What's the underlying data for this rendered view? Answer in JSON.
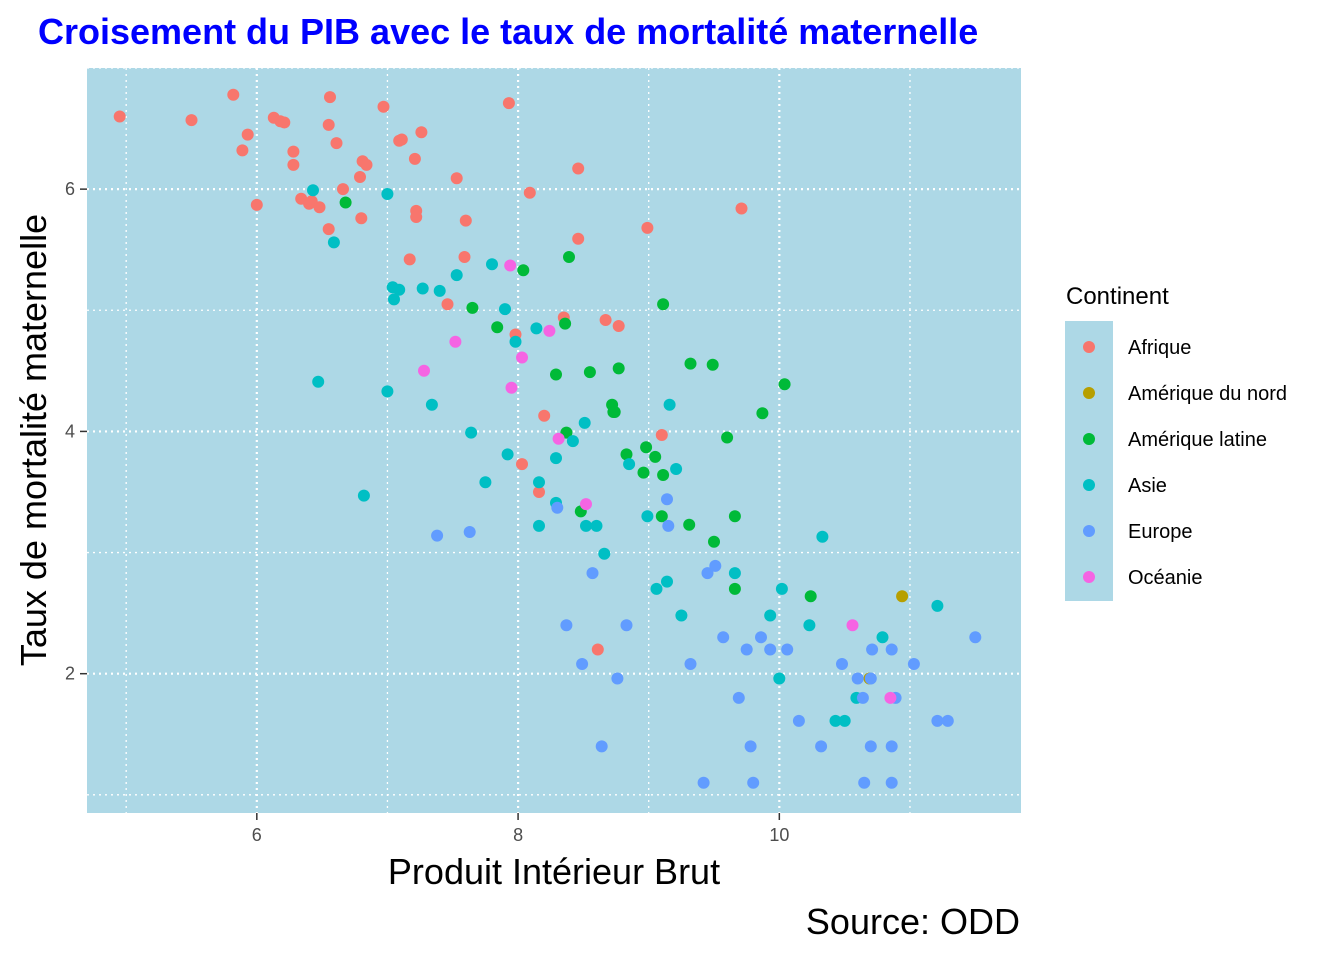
{
  "chart_data": {
    "type": "scatter",
    "title": "Croisement du PIB avec le taux de mortalité maternelle",
    "xlabel": "Produit Intérieur Brut",
    "ylabel": "Taux de mortalité maternelle",
    "caption": "Source: ODD",
    "xlim": [
      4.7,
      11.85
    ],
    "ylim": [
      0.85,
      7.0
    ],
    "x_ticks": [
      6,
      8,
      10
    ],
    "x_tick_labels": [
      "6",
      "8",
      "10"
    ],
    "y_ticks": [
      2,
      4,
      6
    ],
    "y_tick_labels": [
      "2",
      "4",
      "6"
    ],
    "grid": "on",
    "legend": {
      "title": "Continent",
      "position": "right"
    },
    "colors": {
      "panel_background": "#add8e6",
      "grid": "#ffffff",
      "title": "#0000ff"
    },
    "series": [
      {
        "name": "Afrique",
        "color": "#f8766d",
        "points": [
          [
            4.95,
            6.6
          ],
          [
            5.5,
            6.57
          ],
          [
            5.82,
            6.78
          ],
          [
            5.93,
            6.45
          ],
          [
            5.89,
            6.32
          ],
          [
            6.0,
            5.87
          ],
          [
            6.13,
            6.59
          ],
          [
            6.18,
            6.56
          ],
          [
            6.21,
            6.55
          ],
          [
            6.28,
            6.31
          ],
          [
            6.28,
            6.2
          ],
          [
            6.34,
            5.92
          ],
          [
            6.4,
            5.88
          ],
          [
            6.42,
            5.9
          ],
          [
            6.48,
            5.85
          ],
          [
            6.55,
            6.53
          ],
          [
            6.56,
            6.76
          ],
          [
            6.61,
            6.38
          ],
          [
            6.55,
            5.67
          ],
          [
            6.66,
            6.0
          ],
          [
            6.79,
            6.1
          ],
          [
            6.81,
            6.23
          ],
          [
            6.84,
            6.2
          ],
          [
            6.8,
            5.76
          ],
          [
            6.97,
            6.68
          ],
          [
            7.09,
            6.4
          ],
          [
            7.11,
            6.41
          ],
          [
            7.17,
            5.42
          ],
          [
            7.21,
            6.25
          ],
          [
            7.26,
            6.47
          ],
          [
            7.22,
            5.82
          ],
          [
            7.22,
            5.77
          ],
          [
            7.46,
            5.05
          ],
          [
            7.53,
            6.09
          ],
          [
            7.6,
            5.74
          ],
          [
            7.59,
            5.44
          ],
          [
            7.93,
            6.71
          ],
          [
            7.98,
            4.8
          ],
          [
            8.09,
            5.97
          ],
          [
            8.03,
            3.73
          ],
          [
            8.2,
            4.13
          ],
          [
            8.16,
            3.5
          ],
          [
            8.35,
            4.94
          ],
          [
            8.46,
            5.59
          ],
          [
            8.46,
            6.17
          ],
          [
            8.61,
            2.2
          ],
          [
            8.67,
            4.92
          ],
          [
            8.77,
            4.87
          ],
          [
            8.99,
            5.68
          ],
          [
            9.1,
            3.97
          ],
          [
            9.71,
            5.84
          ]
        ]
      },
      {
        "name": "Amérique du nord",
        "color": "#b79f00",
        "points": [
          [
            10.94,
            2.64
          ],
          [
            10.69,
            1.96
          ]
        ]
      },
      {
        "name": "Amérique latine",
        "color": "#00ba38",
        "points": [
          [
            6.68,
            5.89
          ],
          [
            7.65,
            5.02
          ],
          [
            7.84,
            4.86
          ],
          [
            8.04,
            5.33
          ],
          [
            8.29,
            4.47
          ],
          [
            8.36,
            4.89
          ],
          [
            8.37,
            3.99
          ],
          [
            8.39,
            5.44
          ],
          [
            8.48,
            3.34
          ],
          [
            8.55,
            4.49
          ],
          [
            8.72,
            4.22
          ],
          [
            8.73,
            4.16
          ],
          [
            8.74,
            4.16
          ],
          [
            8.77,
            4.52
          ],
          [
            8.83,
            3.81
          ],
          [
            8.96,
            3.66
          ],
          [
            8.98,
            3.87
          ],
          [
            9.05,
            3.79
          ],
          [
            9.11,
            3.64
          ],
          [
            9.1,
            3.3
          ],
          [
            9.11,
            5.05
          ],
          [
            9.31,
            3.23
          ],
          [
            9.32,
            4.56
          ],
          [
            9.49,
            4.55
          ],
          [
            9.5,
            3.09
          ],
          [
            9.6,
            3.95
          ],
          [
            9.66,
            3.3
          ],
          [
            9.66,
            2.7
          ],
          [
            9.87,
            4.15
          ],
          [
            10.04,
            4.39
          ],
          [
            10.24,
            2.64
          ]
        ]
      },
      {
        "name": "Asie",
        "color": "#00bfc4",
        "points": [
          [
            6.43,
            5.99
          ],
          [
            6.47,
            4.41
          ],
          [
            6.59,
            5.56
          ],
          [
            6.82,
            3.47
          ],
          [
            7.0,
            5.96
          ],
          [
            7.0,
            4.33
          ],
          [
            7.04,
            5.19
          ],
          [
            7.05,
            5.09
          ],
          [
            7.09,
            5.17
          ],
          [
            7.27,
            5.18
          ],
          [
            7.34,
            4.22
          ],
          [
            7.4,
            5.16
          ],
          [
            7.53,
            5.29
          ],
          [
            7.64,
            3.99
          ],
          [
            7.75,
            3.58
          ],
          [
            7.8,
            5.38
          ],
          [
            7.9,
            5.01
          ],
          [
            7.92,
            3.81
          ],
          [
            7.98,
            4.74
          ],
          [
            8.14,
            4.85
          ],
          [
            8.16,
            3.58
          ],
          [
            8.16,
            3.22
          ],
          [
            8.29,
            3.41
          ],
          [
            8.29,
            3.78
          ],
          [
            8.42,
            3.92
          ],
          [
            8.51,
            4.07
          ],
          [
            8.52,
            3.22
          ],
          [
            8.6,
            3.22
          ],
          [
            8.66,
            2.99
          ],
          [
            8.85,
            3.73
          ],
          [
            8.99,
            3.3
          ],
          [
            9.06,
            2.7
          ],
          [
            9.14,
            2.76
          ],
          [
            9.16,
            4.22
          ],
          [
            9.21,
            3.69
          ],
          [
            9.25,
            2.48
          ],
          [
            9.66,
            2.83
          ],
          [
            9.93,
            2.48
          ],
          [
            10.0,
            1.96
          ],
          [
            10.02,
            2.7
          ],
          [
            10.23,
            2.4
          ],
          [
            10.33,
            3.13
          ],
          [
            10.43,
            1.61
          ],
          [
            10.5,
            1.61
          ],
          [
            10.59,
            1.8
          ],
          [
            10.79,
            2.3
          ],
          [
            11.21,
            2.56
          ]
        ]
      },
      {
        "name": "Europe",
        "color": "#619cff",
        "points": [
          [
            7.38,
            3.14
          ],
          [
            7.63,
            3.17
          ],
          [
            8.3,
            3.37
          ],
          [
            8.37,
            2.4
          ],
          [
            8.49,
            2.08
          ],
          [
            8.57,
            2.83
          ],
          [
            8.64,
            1.4
          ],
          [
            8.76,
            1.96
          ],
          [
            8.83,
            2.4
          ],
          [
            9.14,
            3.44
          ],
          [
            9.15,
            3.22
          ],
          [
            9.32,
            2.08
          ],
          [
            9.42,
            1.1
          ],
          [
            9.45,
            2.83
          ],
          [
            9.51,
            2.89
          ],
          [
            9.57,
            2.3
          ],
          [
            9.69,
            1.8
          ],
          [
            9.75,
            2.2
          ],
          [
            9.78,
            1.4
          ],
          [
            9.8,
            1.1
          ],
          [
            9.86,
            2.3
          ],
          [
            9.93,
            2.2
          ],
          [
            10.06,
            2.2
          ],
          [
            10.15,
            1.61
          ],
          [
            10.32,
            1.4
          ],
          [
            10.48,
            2.08
          ],
          [
            10.6,
            1.96
          ],
          [
            10.64,
            1.8
          ],
          [
            10.65,
            1.1
          ],
          [
            10.7,
            1.96
          ],
          [
            10.71,
            2.2
          ],
          [
            10.7,
            1.4
          ],
          [
            10.86,
            1.1
          ],
          [
            10.86,
            1.4
          ],
          [
            10.86,
            2.2
          ],
          [
            10.89,
            1.8
          ],
          [
            11.03,
            2.08
          ],
          [
            11.21,
            1.61
          ],
          [
            11.29,
            1.61
          ],
          [
            11.5,
            2.3
          ]
        ]
      },
      {
        "name": "Océanie",
        "color": "#f564e3",
        "points": [
          [
            7.28,
            4.5
          ],
          [
            7.52,
            4.74
          ],
          [
            7.94,
            5.37
          ],
          [
            7.95,
            4.36
          ],
          [
            8.03,
            4.61
          ],
          [
            8.24,
            4.83
          ],
          [
            8.31,
            3.94
          ],
          [
            8.52,
            3.4
          ],
          [
            10.56,
            2.4
          ],
          [
            10.85,
            1.8
          ]
        ]
      }
    ]
  }
}
